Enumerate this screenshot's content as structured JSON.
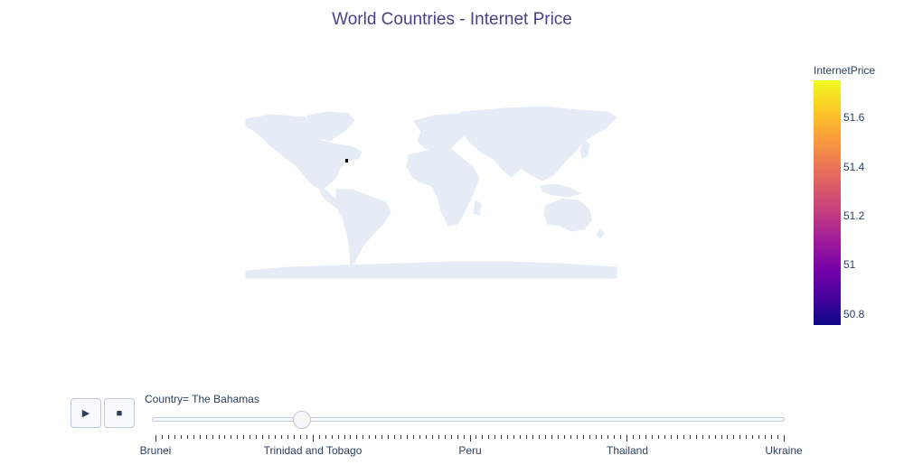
{
  "title": "World Countries - Internet Price",
  "colorbar": {
    "title": "InternetPrice",
    "ticks": [
      "51.6",
      "51.4",
      "51.2",
      "51",
      "50.8"
    ],
    "min": 50.75,
    "max": 51.75
  },
  "slider": {
    "current_label": "Country= The Bahamas",
    "frame_labels": [
      "Brunei",
      "Trinidad and Tobago",
      "Peru",
      "Thailand",
      "Ukraine"
    ],
    "progress": 0.233
  },
  "controls": {
    "play_icon": "play-icon",
    "stop_icon": "stop-icon"
  },
  "map": {
    "land_color": "#e5ecf6",
    "highlighted_country": "The Bahamas",
    "highlight_color": "#000000"
  }
}
